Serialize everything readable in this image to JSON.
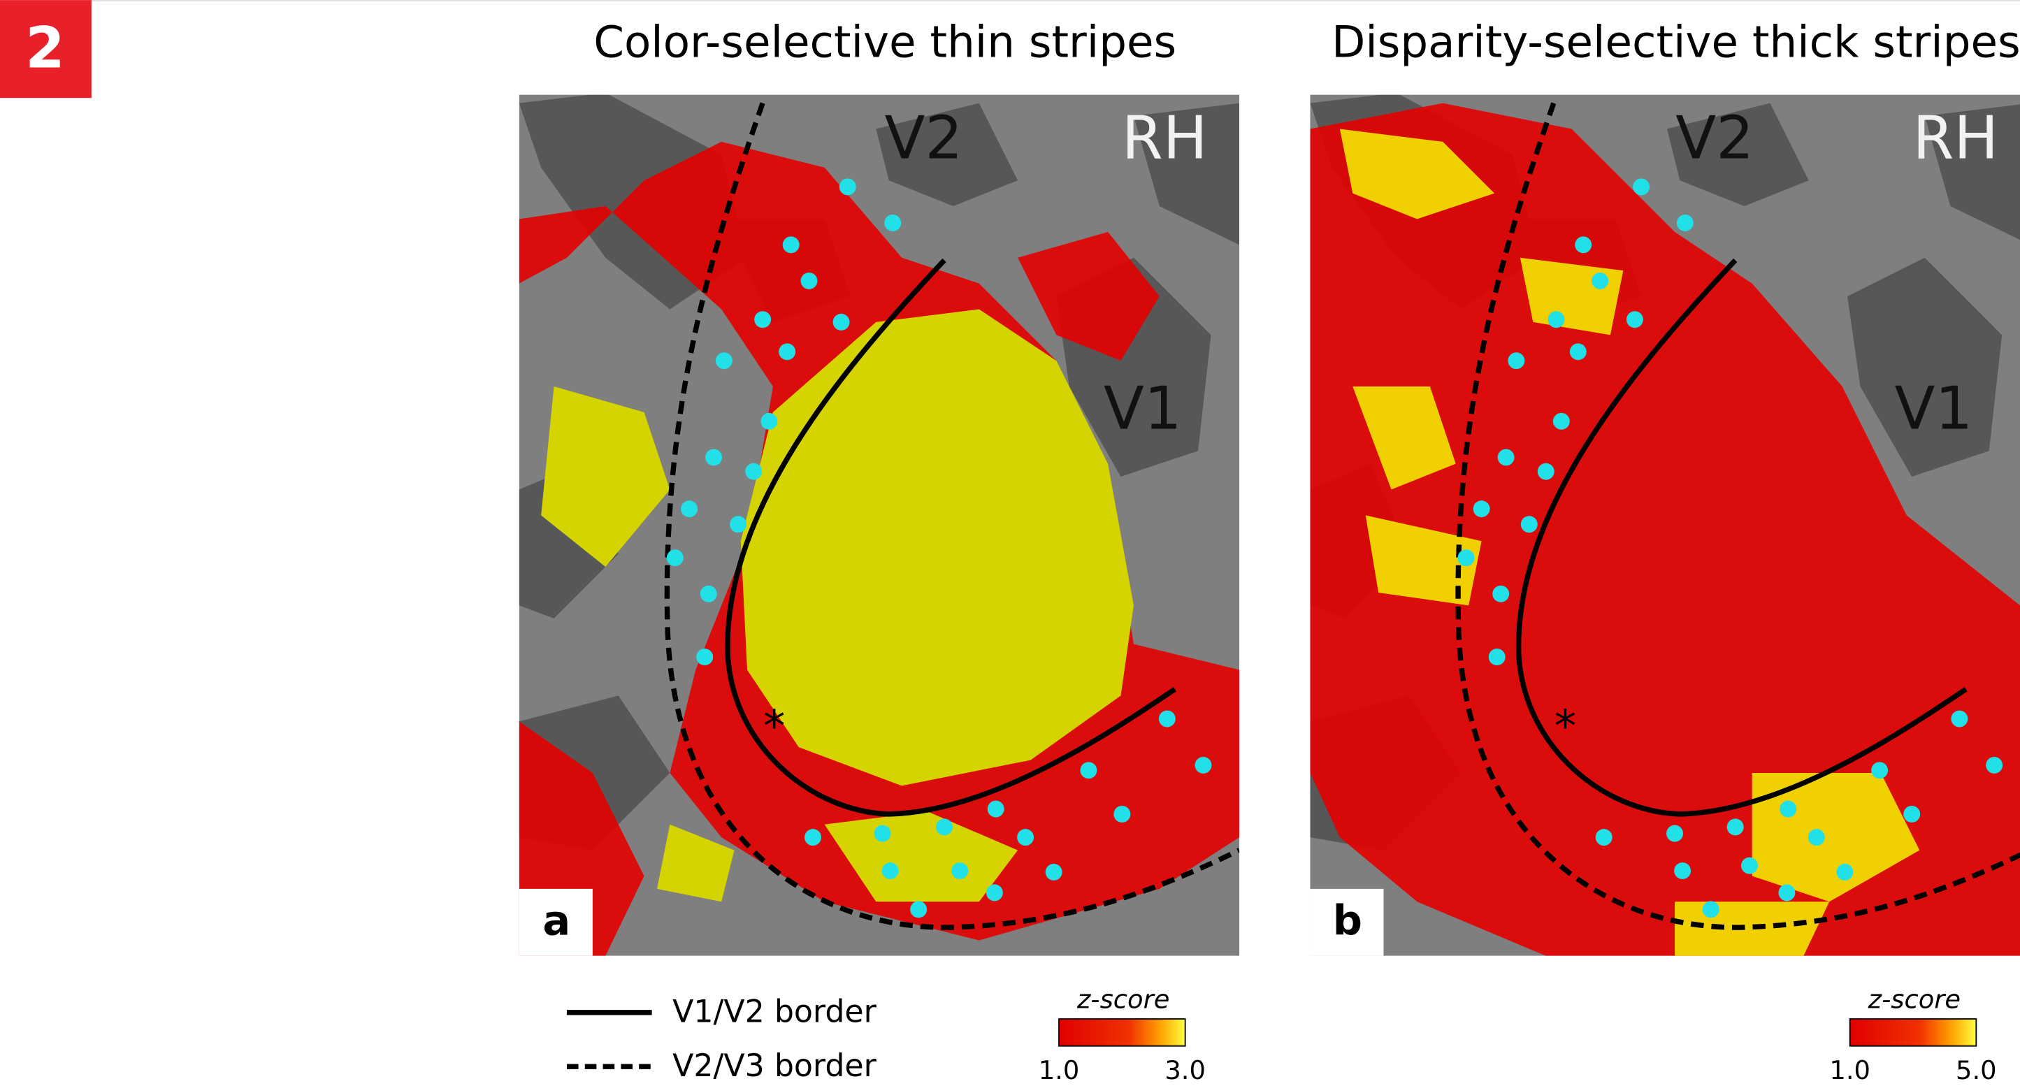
{
  "badge": "2",
  "panels": [
    {
      "letter": "a",
      "title": "Color-selective thin stripes",
      "labels": {
        "v2": "V2",
        "hemisphere": "RH",
        "v1": "V1",
        "marker": "*"
      },
      "colorbar": {
        "title": "z-score",
        "min_label": "1.0",
        "max_label": "3.0"
      }
    },
    {
      "letter": "b",
      "title": "Disparity-selective thick stripes",
      "labels": {
        "v2": "V2",
        "hemisphere": "RH",
        "v1": "V1",
        "marker": "*"
      },
      "colorbar": {
        "title": "z-score",
        "min_label": "1.0",
        "max_label": "5.0"
      }
    }
  ],
  "legend": {
    "solid": "V1/V2 border",
    "dashed": "V2/V3 border"
  }
}
